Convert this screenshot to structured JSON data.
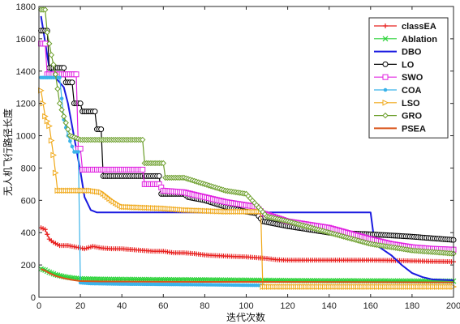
{
  "chart_data": {
    "type": "line",
    "title": "",
    "xlabel": "迭代次数",
    "ylabel": "无人机飞行路径长度",
    "xlim": [
      0,
      200
    ],
    "ylim": [
      0,
      1800
    ],
    "xticks": [
      0,
      20,
      40,
      60,
      80,
      100,
      120,
      140,
      160,
      180,
      200
    ],
    "yticks": [
      0,
      200,
      400,
      600,
      800,
      1000,
      1200,
      1400,
      1600,
      1800
    ],
    "grid": false,
    "legend_position": "top-right",
    "series": [
      {
        "name": "classEA",
        "color": "#e8201f",
        "marker": "plus",
        "points": [
          [
            1,
            430
          ],
          [
            3,
            420
          ],
          [
            5,
            360
          ],
          [
            7,
            340
          ],
          [
            10,
            320
          ],
          [
            14,
            320
          ],
          [
            18,
            310
          ],
          [
            22,
            300
          ],
          [
            26,
            315
          ],
          [
            30,
            305
          ],
          [
            35,
            300
          ],
          [
            40,
            300
          ],
          [
            45,
            295
          ],
          [
            50,
            290
          ],
          [
            55,
            285
          ],
          [
            60,
            285
          ],
          [
            65,
            275
          ],
          [
            70,
            275
          ],
          [
            75,
            270
          ],
          [
            80,
            262
          ],
          [
            85,
            258
          ],
          [
            90,
            255
          ],
          [
            95,
            252
          ],
          [
            100,
            250
          ],
          [
            110,
            240
          ],
          [
            115,
            232
          ],
          [
            120,
            230
          ],
          [
            130,
            230
          ],
          [
            140,
            230
          ],
          [
            150,
            230
          ],
          [
            160,
            230
          ],
          [
            170,
            228
          ],
          [
            180,
            225
          ],
          [
            190,
            222
          ],
          [
            200,
            220
          ]
        ]
      },
      {
        "name": "Ablation",
        "color": "#2dd33a",
        "marker": "x",
        "points": [
          [
            1,
            175
          ],
          [
            3,
            168
          ],
          [
            5,
            155
          ],
          [
            8,
            140
          ],
          [
            12,
            128
          ],
          [
            16,
            120
          ],
          [
            20,
            115
          ],
          [
            30,
            112
          ],
          [
            50,
            110
          ],
          [
            80,
            108
          ],
          [
            100,
            106
          ],
          [
            130,
            103
          ],
          [
            160,
            102
          ],
          [
            200,
            100
          ]
        ]
      },
      {
        "name": "DBO",
        "color": "#1a1ae0",
        "marker": "none",
        "points": [
          [
            1,
            1740
          ],
          [
            3,
            1580
          ],
          [
            5,
            1420
          ],
          [
            8,
            1360
          ],
          [
            12,
            1300
          ],
          [
            14,
            1200
          ],
          [
            16,
            1060
          ],
          [
            18,
            920
          ],
          [
            20,
            780
          ],
          [
            22,
            620
          ],
          [
            25,
            540
          ],
          [
            28,
            525
          ],
          [
            50,
            525
          ],
          [
            80,
            525
          ],
          [
            110,
            525
          ],
          [
            140,
            525
          ],
          [
            160,
            525
          ],
          [
            162,
            330
          ],
          [
            170,
            260
          ],
          [
            175,
            200
          ],
          [
            180,
            150
          ],
          [
            185,
            125
          ],
          [
            190,
            110
          ],
          [
            200,
            105
          ]
        ]
      },
      {
        "name": "LO",
        "color": "#000000",
        "marker": "circle",
        "points": [
          [
            1,
            1650
          ],
          [
            4,
            1650
          ],
          [
            5,
            1420
          ],
          [
            12,
            1420
          ],
          [
            13,
            1330
          ],
          [
            16,
            1330
          ],
          [
            17,
            1200
          ],
          [
            20,
            1200
          ],
          [
            21,
            1150
          ],
          [
            27,
            1150
          ],
          [
            28,
            1040
          ],
          [
            30,
            1040
          ],
          [
            31,
            750
          ],
          [
            50,
            750
          ],
          [
            58,
            750
          ],
          [
            59,
            640
          ],
          [
            70,
            640
          ],
          [
            72,
            620
          ],
          [
            80,
            600
          ],
          [
            90,
            560
          ],
          [
            100,
            530
          ],
          [
            105,
            520
          ],
          [
            108,
            470
          ],
          [
            120,
            440
          ],
          [
            140,
            400
          ],
          [
            160,
            390
          ],
          [
            180,
            375
          ],
          [
            200,
            355
          ]
        ]
      },
      {
        "name": "SWO",
        "color": "#e020e0",
        "marker": "square",
        "points": [
          [
            1,
            1570
          ],
          [
            3,
            1570
          ],
          [
            4,
            1380
          ],
          [
            18,
            1380
          ],
          [
            19,
            920
          ],
          [
            20,
            920
          ],
          [
            21,
            790
          ],
          [
            40,
            790
          ],
          [
            50,
            790
          ],
          [
            51,
            700
          ],
          [
            58,
            700
          ],
          [
            60,
            660
          ],
          [
            70,
            650
          ],
          [
            80,
            620
          ],
          [
            90,
            590
          ],
          [
            100,
            570
          ],
          [
            105,
            560
          ],
          [
            108,
            520
          ],
          [
            120,
            470
          ],
          [
            140,
            430
          ],
          [
            160,
            360
          ],
          [
            170,
            330
          ],
          [
            180,
            310
          ],
          [
            190,
            300
          ],
          [
            200,
            295
          ]
        ]
      },
      {
        "name": "COA",
        "color": "#3ab3ea",
        "marker": "dot",
        "points": [
          [
            1,
            1360
          ],
          [
            10,
            1360
          ],
          [
            12,
            1100
          ],
          [
            14,
            1000
          ],
          [
            17,
            900
          ],
          [
            19,
            900
          ],
          [
            20,
            90
          ],
          [
            25,
            85
          ],
          [
            40,
            82
          ],
          [
            60,
            80
          ],
          [
            80,
            78
          ],
          [
            100,
            75
          ],
          [
            108,
            74
          ]
        ]
      },
      {
        "name": "LSO",
        "color": "#f0a818",
        "marker": "triangle-right",
        "points": [
          [
            1,
            1280
          ],
          [
            3,
            1120
          ],
          [
            5,
            1060
          ],
          [
            7,
            880
          ],
          [
            9,
            660
          ],
          [
            25,
            660
          ],
          [
            30,
            650
          ],
          [
            35,
            600
          ],
          [
            40,
            560
          ],
          [
            50,
            555
          ],
          [
            60,
            550
          ],
          [
            70,
            540
          ],
          [
            80,
            535
          ],
          [
            90,
            530
          ],
          [
            100,
            530
          ],
          [
            107,
            530
          ],
          [
            108,
            65
          ],
          [
            130,
            65
          ],
          [
            160,
            65
          ],
          [
            200,
            65
          ]
        ]
      },
      {
        "name": "GRO",
        "color": "#6b9e2a",
        "marker": "diamond",
        "points": [
          [
            1,
            1780
          ],
          [
            3,
            1780
          ],
          [
            4,
            1640
          ],
          [
            6,
            1500
          ],
          [
            8,
            1380
          ],
          [
            10,
            1200
          ],
          [
            15,
            1000
          ],
          [
            18,
            985
          ],
          [
            20,
            975
          ],
          [
            50,
            975
          ],
          [
            51,
            830
          ],
          [
            60,
            830
          ],
          [
            61,
            740
          ],
          [
            70,
            740
          ],
          [
            80,
            700
          ],
          [
            90,
            660
          ],
          [
            100,
            640
          ],
          [
            110,
            500
          ],
          [
            120,
            470
          ],
          [
            140,
            400
          ],
          [
            160,
            330
          ],
          [
            180,
            290
          ],
          [
            190,
            280
          ],
          [
            200,
            270
          ]
        ]
      },
      {
        "name": "PSEA",
        "color": "#d9541a",
        "marker": "none",
        "points": [
          [
            1,
            175
          ],
          [
            3,
            165
          ],
          [
            5,
            150
          ],
          [
            8,
            132
          ],
          [
            12,
            118
          ],
          [
            16,
            108
          ],
          [
            20,
            100
          ],
          [
            30,
            98
          ],
          [
            60,
            96
          ],
          [
            100,
            95
          ],
          [
            150,
            94
          ],
          [
            200,
            92
          ]
        ]
      }
    ]
  }
}
